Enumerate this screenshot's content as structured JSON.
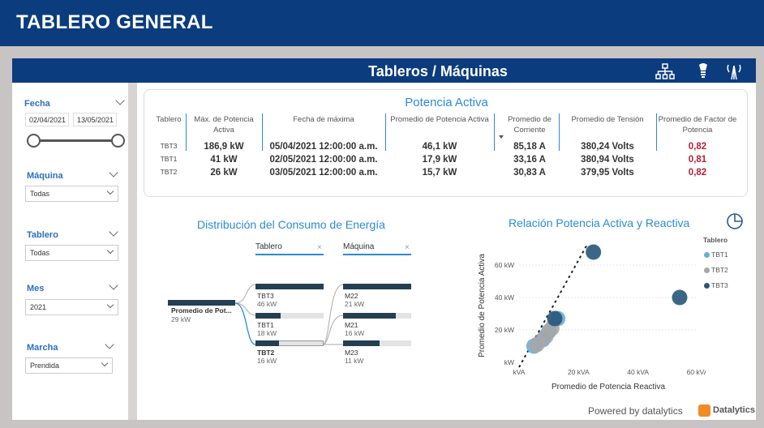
{
  "app_title": "TABLERO GENERAL",
  "header": {
    "title": "Tableros / Máquinas",
    "icons": [
      "hierarchy-icon",
      "light-bulb-icon",
      "tower-icon"
    ]
  },
  "filters": {
    "fecha": {
      "label": "Fecha",
      "start": "02/04/2021",
      "end": "13/05/2021"
    },
    "maquina": {
      "label": "Máquina",
      "value": "Todas"
    },
    "tablero": {
      "label": "Tablero",
      "value": "Todas"
    },
    "mes": {
      "label": "Mes",
      "value": "2021"
    },
    "marcha": {
      "label": "Marcha",
      "value": "Prendida"
    }
  },
  "potencia": {
    "title": "Potencia Activa",
    "columns": [
      "Tablero",
      "Máx. de Potencia Activa",
      "Fecha de máxima",
      "Promedio de Potencia Activa",
      "Promedio de Corriente",
      "Promedio de Tensión",
      "Promedio de Factor de Potencia"
    ],
    "rows": [
      {
        "tablero": "TBT3",
        "max": "186,9 kW",
        "fecha": "05/04/2021 12:00:00 a.m.",
        "prom_pot": "46,1 kW",
        "corriente": "85,18 A",
        "tension": "380,24 Volts",
        "fp": "0,82"
      },
      {
        "tablero": "TBT1",
        "max": "41 kW",
        "fecha": "02/05/2021 12:00:00 a.m.",
        "prom_pot": "17,9 kW",
        "corriente": "33,16 A",
        "tension": "380,94 Volts",
        "fp": "0,81"
      },
      {
        "tablero": "TBT2",
        "max": "26 kW",
        "fecha": "03/05/2021 12:00:00 a.m.",
        "prom_pot": "15,7 kW",
        "corriente": "30,83 A",
        "tension": "379,95 Volts",
        "fp": "0,82"
      }
    ]
  },
  "distribucion": {
    "title": "Distribución del Consumo de Energía",
    "root": {
      "label": "Promedio de Pot...",
      "value": "29 kW"
    },
    "level1_header": "Tablero",
    "level2_header": "Máquina",
    "level1": [
      {
        "label": "TBT3",
        "value": "46 kW",
        "fraction": 1.0
      },
      {
        "label": "TBT1",
        "value": "18 kW",
        "fraction": 0.37
      },
      {
        "label": "TBT2",
        "value": "16 kW",
        "fraction": 0.34
      }
    ],
    "level2": [
      {
        "label": "M22",
        "value": "21 kW",
        "fraction": 1.0
      },
      {
        "label": "M21",
        "value": "16 kW",
        "fraction": 0.77
      },
      {
        "label": "M23",
        "value": "11 kW",
        "fraction": 0.53
      }
    ]
  },
  "chart_data": {
    "type": "scatter",
    "title": "Relación Potencia Activa y Reactiva",
    "xlabel": "Promedio de Potencia Reactiva",
    "ylabel": "Promedio de Potencia Activa",
    "xlim": [
      0,
      60
    ],
    "ylim": [
      0,
      70
    ],
    "x_ticks": [
      "kVA",
      "20 kVA",
      "40 kVA",
      "60 kVA"
    ],
    "y_ticks": [
      "kW",
      "20 kW",
      "40 kW",
      "60 kW"
    ],
    "legend_title": "Tablero",
    "legend_position": "right",
    "series": [
      {
        "name": "TBT1",
        "color": "#6aaed6",
        "points": [
          [
            5,
            10
          ],
          [
            8,
            14
          ],
          [
            10,
            19
          ],
          [
            13,
            27
          ]
        ]
      },
      {
        "name": "TBT2",
        "color": "#a6a6a6",
        "points": [
          [
            6,
            11
          ],
          [
            9,
            16
          ],
          [
            11,
            21
          ]
        ]
      },
      {
        "name": "TBT3",
        "color": "#26567a",
        "points": [
          [
            12,
            27
          ],
          [
            25,
            68
          ],
          [
            54,
            40
          ]
        ]
      }
    ]
  },
  "footer": {
    "powered": "Powered by datalytics",
    "brand": "Datalytics"
  }
}
